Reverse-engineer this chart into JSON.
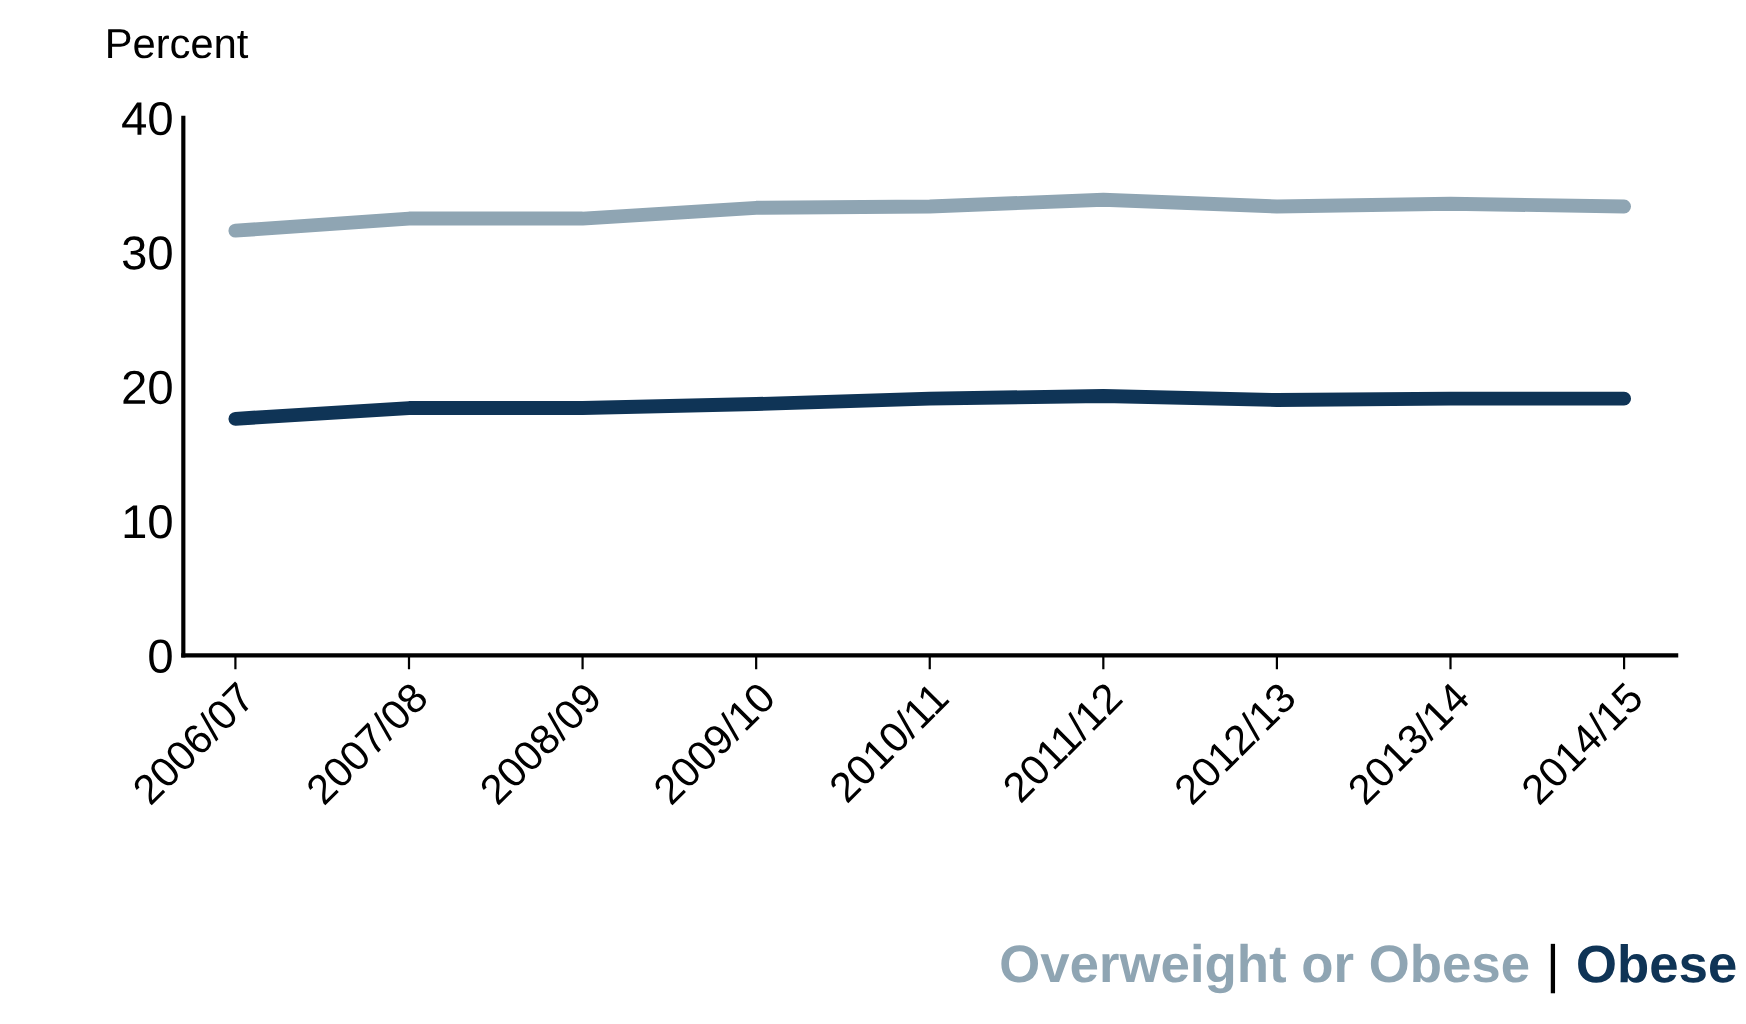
{
  "chart_data": {
    "type": "line",
    "ylabel": "Percent",
    "categories": [
      "2006/07",
      "2007/08",
      "2008/09",
      "2009/10",
      "2010/11",
      "2011/12",
      "2012/13",
      "2013/14",
      "2014/15"
    ],
    "series": [
      {
        "name": "Overweight or Obese",
        "color": "#8fa5b3",
        "values": [
          31.6,
          32.5,
          32.5,
          33.3,
          33.4,
          33.9,
          33.4,
          33.6,
          33.4
        ]
      },
      {
        "name": "Obese",
        "color": "#0f3456",
        "values": [
          17.6,
          18.4,
          18.4,
          18.7,
          19.1,
          19.3,
          19.0,
          19.1,
          19.1
        ]
      }
    ],
    "ylim": [
      0,
      40
    ],
    "yticks": [
      0,
      10,
      20,
      30,
      40
    ],
    "grid": false,
    "legend": "bottom right",
    "marker": "none",
    "line_style": "solid",
    "annotations": [
      "|"
    ]
  }
}
